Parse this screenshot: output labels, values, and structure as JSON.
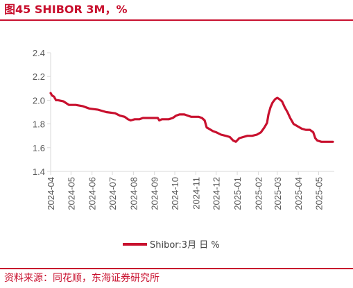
{
  "header": {
    "figure_title": "图45  SHIBOR 3M，%"
  },
  "footer": {
    "source": "资料来源：同花顺，东海证券研究所"
  },
  "colors": {
    "accent": "#c8102e",
    "series": "#c8102e",
    "axis": "#d9d9d9",
    "text": "#595959"
  },
  "chart_data": {
    "type": "line",
    "title": "SHIBOR 3M，%",
    "xlabel": "",
    "ylabel": "",
    "ylim": [
      1.4,
      2.4
    ],
    "yticks": [
      1.4,
      1.6,
      1.8,
      2.0,
      2.2,
      2.4
    ],
    "ytick_labels": [
      "1.4",
      "1.6",
      "1.8",
      "2.0",
      "2.2",
      "2.4"
    ],
    "xlim": [
      "2024-04-01",
      "2025-05-24"
    ],
    "xticks": [
      "2024-04-01",
      "2024-05-01",
      "2024-06-01",
      "2024-07-01",
      "2024-08-01",
      "2024-09-01",
      "2024-10-01",
      "2024-11-01",
      "2024-12-01",
      "2025-01-01",
      "2025-02-01",
      "2025-03-01",
      "2025-04-01",
      "2025-05-01"
    ],
    "xtick_labels": [
      "2024-04",
      "2024-05",
      "2024-06",
      "2024-07",
      "2024-08",
      "2024-09",
      "2024-10",
      "2024-11",
      "2024-12",
      "2025-01",
      "2025-02",
      "2025-03",
      "2025-04",
      "2025-05"
    ],
    "grid": false,
    "legend": {
      "position": "bottom",
      "entries": [
        "Shibor:3月 日 %"
      ]
    },
    "series": [
      {
        "name": "Shibor:3月 日 %",
        "points": [
          [
            "2024-04-01",
            2.06
          ],
          [
            "2024-04-03",
            2.04
          ],
          [
            "2024-04-06",
            2.03
          ],
          [
            "2024-04-09",
            2.0
          ],
          [
            "2024-04-12",
            2.0
          ],
          [
            "2024-04-20",
            1.99
          ],
          [
            "2024-04-28",
            1.96
          ],
          [
            "2024-05-08",
            1.96
          ],
          [
            "2024-05-18",
            1.95
          ],
          [
            "2024-05-28",
            1.93
          ],
          [
            "2024-06-10",
            1.92
          ],
          [
            "2024-06-22",
            1.9
          ],
          [
            "2024-07-05",
            1.89
          ],
          [
            "2024-07-12",
            1.87
          ],
          [
            "2024-07-19",
            1.86
          ],
          [
            "2024-07-24",
            1.84
          ],
          [
            "2024-07-28",
            1.83
          ],
          [
            "2024-08-03",
            1.84
          ],
          [
            "2024-08-10",
            1.84
          ],
          [
            "2024-08-15",
            1.85
          ],
          [
            "2024-08-25",
            1.85
          ],
          [
            "2024-09-03",
            1.85
          ],
          [
            "2024-09-06",
            1.85
          ],
          [
            "2024-09-08",
            1.83
          ],
          [
            "2024-09-12",
            1.84
          ],
          [
            "2024-09-22",
            1.84
          ],
          [
            "2024-09-28",
            1.85
          ],
          [
            "2024-10-03",
            1.87
          ],
          [
            "2024-10-08",
            1.88
          ],
          [
            "2024-10-15",
            1.88
          ],
          [
            "2024-10-20",
            1.87
          ],
          [
            "2024-10-25",
            1.86
          ],
          [
            "2024-11-05",
            1.86
          ],
          [
            "2024-11-10",
            1.85
          ],
          [
            "2024-11-14",
            1.83
          ],
          [
            "2024-11-17",
            1.77
          ],
          [
            "2024-11-20",
            1.76
          ],
          [
            "2024-11-26",
            1.74
          ],
          [
            "2024-12-01",
            1.73
          ],
          [
            "2024-12-08",
            1.71
          ],
          [
            "2024-12-15",
            1.7
          ],
          [
            "2024-12-21",
            1.69
          ],
          [
            "2024-12-26",
            1.66
          ],
          [
            "2024-12-30",
            1.65
          ],
          [
            "2025-01-04",
            1.68
          ],
          [
            "2025-01-10",
            1.69
          ],
          [
            "2025-01-16",
            1.7
          ],
          [
            "2025-01-23",
            1.7
          ],
          [
            "2025-01-30",
            1.71
          ],
          [
            "2025-02-05",
            1.73
          ],
          [
            "2025-02-10",
            1.77
          ],
          [
            "2025-02-14",
            1.81
          ],
          [
            "2025-02-16",
            1.88
          ],
          [
            "2025-02-19",
            1.94
          ],
          [
            "2025-02-22",
            1.98
          ],
          [
            "2025-02-26",
            2.01
          ],
          [
            "2025-03-01",
            2.02
          ],
          [
            "2025-03-04",
            2.01
          ],
          [
            "2025-03-08",
            1.99
          ],
          [
            "2025-03-12",
            1.94
          ],
          [
            "2025-03-16",
            1.9
          ],
          [
            "2025-03-20",
            1.85
          ],
          [
            "2025-03-25",
            1.8
          ],
          [
            "2025-03-31",
            1.78
          ],
          [
            "2025-04-06",
            1.76
          ],
          [
            "2025-04-12",
            1.75
          ],
          [
            "2025-04-18",
            1.75
          ],
          [
            "2025-04-23",
            1.73
          ],
          [
            "2025-04-26",
            1.68
          ],
          [
            "2025-04-29",
            1.66
          ],
          [
            "2025-05-05",
            1.65
          ],
          [
            "2025-05-10",
            1.65
          ],
          [
            "2025-05-15",
            1.65
          ],
          [
            "2025-05-22",
            1.65
          ]
        ]
      }
    ]
  }
}
